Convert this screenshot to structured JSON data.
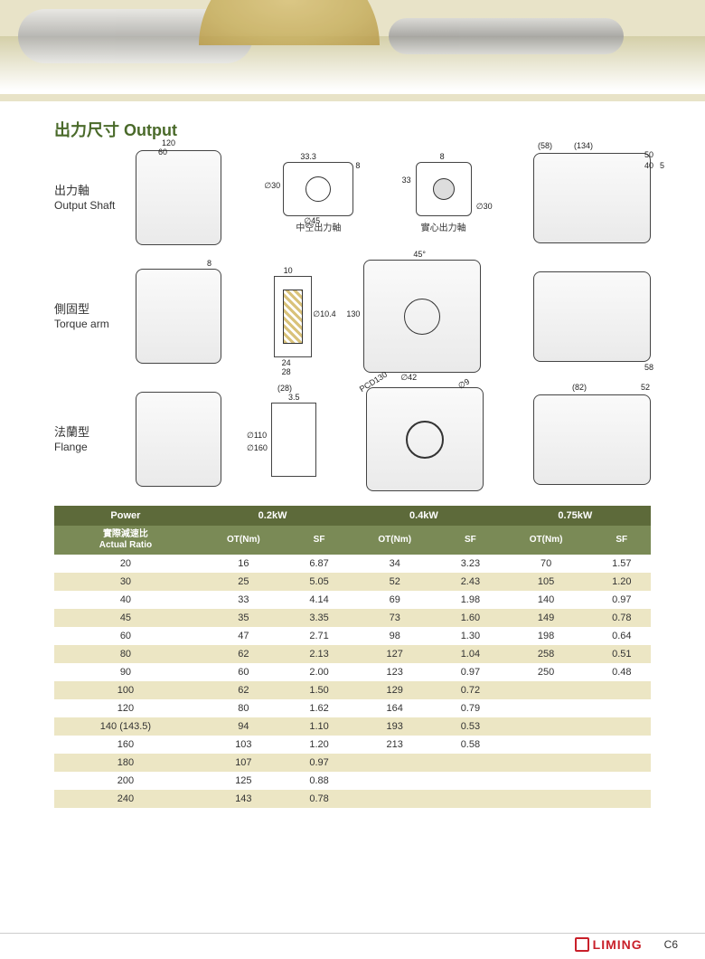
{
  "colors": {
    "title_color": "#4a6a2a",
    "table_header_dark": "#5d6a3a",
    "table_header_light": "#7a8a56",
    "row_stripe": "#ece6c4",
    "brand_red": "#c9202a"
  },
  "title": "出力尺寸 Output",
  "rows": {
    "output_shaft": {
      "cn": "出力軸",
      "en": "Output Shaft"
    },
    "torque_arm": {
      "cn": "側固型",
      "en": "Torque arm"
    },
    "flange": {
      "cn": "法蘭型",
      "en": "Flange"
    }
  },
  "dims": {
    "os_top1": "120",
    "os_top2": "60",
    "os_mid1": "33.3",
    "os_mid2": "8",
    "os_mid3": "∅30",
    "os_mid4": "∅45",
    "os_mid_label": "中空出力軸",
    "os_solid1": "8",
    "os_solid2": "33",
    "os_solid3": "∅30",
    "os_solid_label": "實心出力軸",
    "os_right1": "(58)",
    "os_right2": "(134)",
    "os_right3": "50",
    "os_right4": "40",
    "os_right5": "5",
    "ta_left1": "8",
    "ta_mid1": "10",
    "ta_mid2": "∅10.4",
    "ta_mid3": "24",
    "ta_mid4": "28",
    "ta_ctr1": "45°",
    "ta_ctr2": "130",
    "ta_ctr3": "∅42",
    "ta_right1": "58",
    "fl_left1": "(28)",
    "fl_left2": "3.5",
    "fl_left3": "∅110",
    "fl_left4": "∅160",
    "fl_ctr1": "PCD130",
    "fl_ctr2": "∅9",
    "fl_right1": "(82)",
    "fl_right2": "52"
  },
  "table": {
    "header_power": "Power",
    "header_ratio_cn": "實際減速比",
    "header_ratio_en": "Actual Ratio",
    "power_cols": [
      "0.2kW",
      "0.4kW",
      "0.75kW"
    ],
    "sub_cols": [
      "OT(Nm)",
      "SF"
    ],
    "rows": [
      {
        "ratio": "20",
        "c": [
          "16",
          "6.87",
          "34",
          "3.23",
          "70",
          "1.57"
        ]
      },
      {
        "ratio": "30",
        "c": [
          "25",
          "5.05",
          "52",
          "2.43",
          "105",
          "1.20"
        ]
      },
      {
        "ratio": "40",
        "c": [
          "33",
          "4.14",
          "69",
          "1.98",
          "140",
          "0.97"
        ]
      },
      {
        "ratio": "45",
        "c": [
          "35",
          "3.35",
          "73",
          "1.60",
          "149",
          "0.78"
        ]
      },
      {
        "ratio": "60",
        "c": [
          "47",
          "2.71",
          "98",
          "1.30",
          "198",
          "0.64"
        ]
      },
      {
        "ratio": "80",
        "c": [
          "62",
          "2.13",
          "127",
          "1.04",
          "258",
          "0.51"
        ]
      },
      {
        "ratio": "90",
        "c": [
          "60",
          "2.00",
          "123",
          "0.97",
          "250",
          "0.48"
        ]
      },
      {
        "ratio": "100",
        "c": [
          "62",
          "1.50",
          "129",
          "0.72",
          "",
          ""
        ]
      },
      {
        "ratio": "120",
        "c": [
          "80",
          "1.62",
          "164",
          "0.79",
          "",
          ""
        ]
      },
      {
        "ratio": "140 (143.5)",
        "c": [
          "94",
          "1.10",
          "193",
          "0.53",
          "",
          ""
        ]
      },
      {
        "ratio": "160",
        "c": [
          "103",
          "1.20",
          "213",
          "0.58",
          "",
          ""
        ]
      },
      {
        "ratio": "180",
        "c": [
          "107",
          "0.97",
          "",
          "",
          "",
          ""
        ]
      },
      {
        "ratio": "200",
        "c": [
          "125",
          "0.88",
          "",
          "",
          "",
          ""
        ]
      },
      {
        "ratio": "240",
        "c": [
          "143",
          "0.78",
          "",
          "",
          "",
          ""
        ]
      }
    ]
  },
  "footer": {
    "brand": "LIMING",
    "page": "C6"
  }
}
